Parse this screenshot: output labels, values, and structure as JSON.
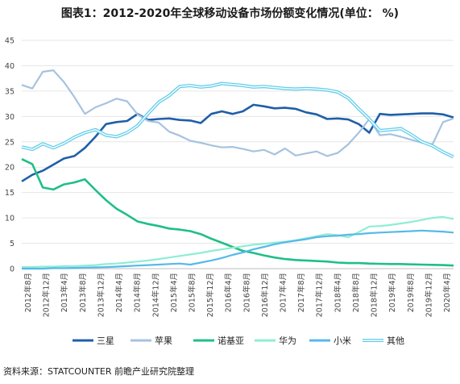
{
  "chart_data": {
    "type": "line",
    "title": "图表1：2012-2020年全球移动设备市场份额变化情况(单位： %)",
    "source": "资料来源：STATCOUNTER 前瞻产业研究院整理",
    "ylim": [
      0,
      45
    ],
    "yticks": [
      0,
      5,
      10,
      15,
      20,
      25,
      30,
      35,
      40,
      45
    ],
    "x_tick_labels": [
      "2012年8月",
      "2012年12月",
      "2013年4月",
      "2013年8月",
      "2013年12月",
      "2014年4月",
      "2014年8月",
      "2014年12月",
      "2015年4月",
      "2015年8月",
      "2015年12月",
      "2016年4月",
      "2016年8月",
      "2016年12月",
      "2017年4月",
      "2017年8月",
      "2017年12月",
      "2018年4月",
      "2018年8月",
      "2018年12月",
      "2019年4月",
      "2019年8月",
      "2019年12月",
      "2020年4月"
    ],
    "legend_position": "bottom",
    "series": [
      {
        "name": "三星",
        "color": "#1f5fa8",
        "values": [
          17.2,
          18.5,
          19.3,
          20.5,
          21.7,
          22.2,
          23.8,
          26,
          28.5,
          28.9,
          29.1,
          30.5,
          29.3,
          29.5,
          29.6,
          29.3,
          29.2,
          28.7,
          30.5,
          31,
          30.5,
          31,
          32.3,
          32,
          31.6,
          31.7,
          31.5,
          30.8,
          30.4,
          29.5,
          29.6,
          29.4,
          28.5,
          26.8,
          30.5,
          30.3,
          30.4,
          30.5,
          30.6,
          30.6,
          30.4,
          29.8
        ]
      },
      {
        "name": "苹果",
        "color": "#a6c3df",
        "values": [
          36.2,
          35.5,
          38.8,
          39.1,
          36.8,
          33.8,
          30.5,
          31.8,
          32.6,
          33.5,
          33,
          30.4,
          29.1,
          28.8,
          27,
          26.2,
          25.2,
          24.8,
          24.3,
          23.9,
          24,
          23.6,
          23.1,
          23.4,
          22.5,
          23.7,
          22.3,
          22.7,
          23.1,
          22.2,
          22.8,
          24.5,
          26.8,
          29.5,
          26.3,
          26.5,
          26,
          25.4,
          24.8,
          24.5,
          28.9,
          29.6
        ]
      },
      {
        "name": "诺基亚",
        "color": "#1fbf86",
        "values": [
          21.6,
          20.6,
          16,
          15.6,
          16.6,
          17,
          17.6,
          15.5,
          13.5,
          11.8,
          10.6,
          9.3,
          8.8,
          8.4,
          7.9,
          7.7,
          7.4,
          6.8,
          5.9,
          5.1,
          4.3,
          3.5,
          3.1,
          2.6,
          2.2,
          1.9,
          1.7,
          1.6,
          1.5,
          1.4,
          1.2,
          1.1,
          1.1,
          1,
          0.95,
          0.9,
          0.9,
          0.85,
          0.8,
          0.75,
          0.7,
          0.6
        ]
      },
      {
        "name": "华为",
        "color": "#8eedd4",
        "values": [
          0.3,
          0.3,
          0.4,
          0.4,
          0.5,
          0.5,
          0.6,
          0.7,
          0.9,
          1,
          1.2,
          1.4,
          1.6,
          1.9,
          2.2,
          2.5,
          2.8,
          3.1,
          3.5,
          3.8,
          4.1,
          4.4,
          4.7,
          4.9,
          5.1,
          5.3,
          5.6,
          6,
          6.4,
          6.8,
          6.6,
          6.2,
          7.2,
          8.3,
          8.4,
          8.6,
          8.9,
          9.2,
          9.6,
          10,
          10.2,
          9.8
        ]
      },
      {
        "name": "小米",
        "color": "#56b9ea",
        "values": [
          0,
          0,
          0,
          0.1,
          0.1,
          0.15,
          0.2,
          0.25,
          0.3,
          0.4,
          0.5,
          0.6,
          0.7,
          0.8,
          0.9,
          1,
          0.8,
          1.2,
          1.6,
          2.1,
          2.7,
          3.2,
          3.8,
          4.3,
          4.8,
          5.2,
          5.5,
          5.8,
          6.2,
          6.4,
          6.5,
          6.7,
          6.8,
          7,
          7.1,
          7.2,
          7.3,
          7.4,
          7.5,
          7.4,
          7.3,
          7.1
        ]
      },
      {
        "name": "其他",
        "color": "#62cdea",
        "values": [
          24,
          23.5,
          24.6,
          23.8,
          24.7,
          25.9,
          26.8,
          27.4,
          26.3,
          26,
          26.8,
          28.2,
          30.6,
          32.8,
          34.1,
          35.9,
          36.1,
          35.8,
          36,
          36.5,
          36.3,
          36.1,
          35.8,
          35.9,
          35.7,
          35.5,
          35.4,
          35.5,
          35.4,
          35.2,
          34.8,
          33.6,
          31.5,
          29.5,
          27.2,
          27.4,
          27.6,
          26.4,
          25,
          24.2,
          23,
          22
        ]
      }
    ]
  }
}
